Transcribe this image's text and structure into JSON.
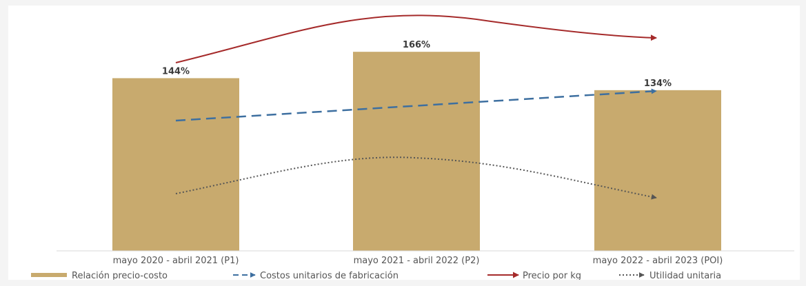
{
  "chart_data": {
    "type": "bar",
    "categories": [
      "mayo 2020 - abril 2021 (P1)",
      "mayo 2021 - abril 2022 (P2)",
      "mayo 2022 - abril 2023 (POI)"
    ],
    "series": [
      {
        "name": "Relación precio-costo",
        "type": "bar",
        "values": [
          144,
          166,
          134
        ],
        "labels": [
          "144%",
          "166%",
          "134%"
        ],
        "color": "#c8aa6e"
      },
      {
        "name": "Costos unitarios de fabricación",
        "type": "trend-arrow",
        "style": "dashed",
        "trend": "increasing",
        "color": "#3d6fa0"
      },
      {
        "name": "Precio por kg",
        "type": "trend-arrow",
        "style": "solid",
        "trend": "rise-then-fall",
        "color": "#a52a2a"
      },
      {
        "name": "Utilidad unitaria",
        "type": "trend-arrow",
        "style": "dotted",
        "trend": "rise-then-fall",
        "color": "#555555"
      }
    ],
    "title": "",
    "xlabel": "",
    "ylabel": "",
    "ylim": [
      0,
      200
    ],
    "grid": false,
    "legend_position": "bottom"
  }
}
